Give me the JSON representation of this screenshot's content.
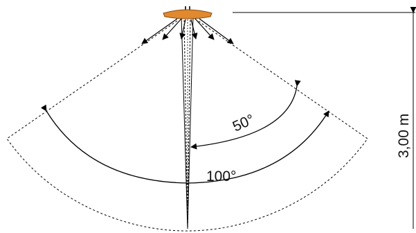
{
  "diagram": {
    "labels": {
      "height": "3,00 m",
      "angle_narrow": "50°",
      "angle_wide": "100°"
    },
    "colors": {
      "sensor_body": "#e0892e",
      "sensor_outline": "#8a4a12",
      "lines": "#000000"
    }
  }
}
